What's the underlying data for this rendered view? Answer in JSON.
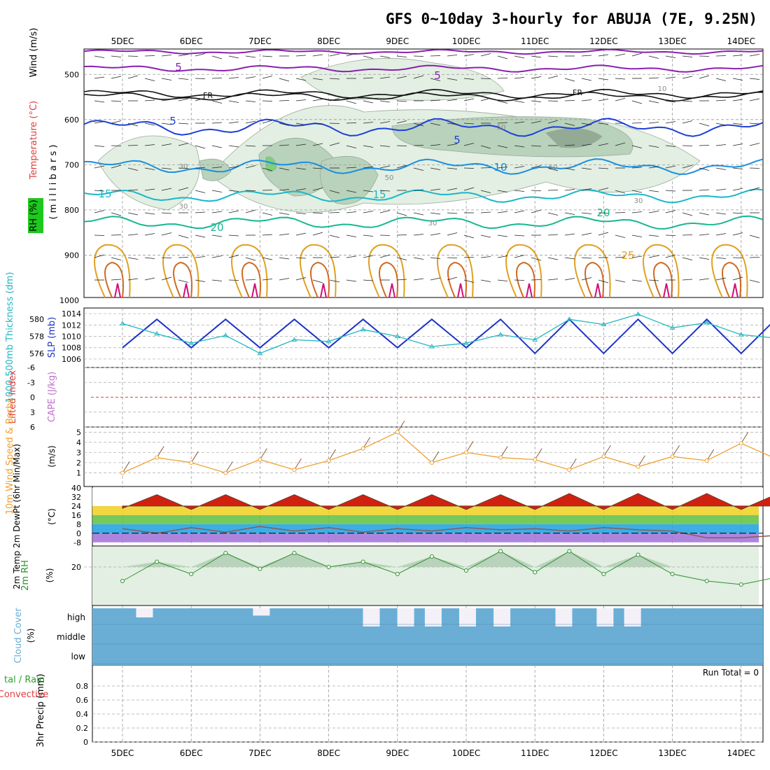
{
  "title": "GFS 0~10day 3-hourly for ABUJA (7E, 9.25N)",
  "days": [
    "5DEC",
    "6DEC",
    "7DEC",
    "8DEC",
    "9DEC",
    "10DEC",
    "11DEC",
    "12DEC",
    "13DEC",
    "14DEC"
  ],
  "colors": {
    "rh_light": "#e2efe2",
    "rh_mid": "#b9d2bb",
    "rh_dark": "#93aa95",
    "slp": "#1f34c8",
    "thickness": "#22b7c2",
    "wind10m": "#f0a030",
    "cloud": "#6aaed6",
    "cloud_gap": "#f4f0f8",
    "rh2m_line": "#2f8f2f",
    "temp_hot": "#d22010",
    "dewpt": "#8a5a5a",
    "lifted_zero": "#e06060"
  },
  "panels": {
    "upper": {
      "ylabel_wind": "Wind (m/s)",
      "ylabel_temp": "Temperature (°C)",
      "ylabel_rh": "RH (%)",
      "ylabel_mb": "( m i l l i b a r s )",
      "ticks": [
        "500",
        "600",
        "700",
        "800",
        "900",
        "1000"
      ],
      "contour_labels": [
        "5",
        "5",
        "5",
        "5",
        "10",
        "15",
        "15",
        "20",
        "20",
        "25",
        "FR",
        "FR"
      ],
      "rh_labels": [
        "50",
        "50",
        "50",
        "30",
        "30",
        "30",
        "30",
        "10"
      ]
    },
    "slp": {
      "ylabel_thickness": "1000-500mb Thickness (dm)",
      "ylabel_slp": "SLP (mb)",
      "ticks_left": [
        "580",
        "578",
        "576"
      ],
      "ticks_right": [
        "1014",
        "1012",
        "1010",
        "1008",
        "1006"
      ]
    },
    "cape": {
      "ylabel_li": "Lifted Index",
      "ylabel_cape": "CAPE (J/kg)",
      "ticks": [
        "-6",
        "-3",
        "0",
        "3",
        "6"
      ]
    },
    "wind10m": {
      "ylabel": "10m Wind Speed & Barbs",
      "unit": "(m/s)",
      "ticks": [
        "5",
        "4",
        "3",
        "2",
        "1"
      ]
    },
    "temp2m": {
      "ylabel": "2m Temp 2m DewPt (6hr Min/Max)",
      "unit": "(°C)",
      "ticks": [
        "40",
        "32",
        "24",
        "16",
        "8",
        "0",
        "-8"
      ]
    },
    "rh2m": {
      "ylabel": "2m RH",
      "unit": "(%)",
      "ticks": [
        "20"
      ]
    },
    "cloud": {
      "ylabel": "Cloud Cover",
      "unit": "(%)",
      "ticks": [
        "high",
        "middle",
        "low"
      ]
    },
    "precip": {
      "ylabel_total": "tal / Rain",
      "ylabel_conv": "Convective",
      "ylabel": "3hr Precip (mm)",
      "ticks": [
        "0.8",
        "0.6",
        "0.4",
        "0.2",
        "0"
      ],
      "run_total": "Run Total = 0"
    }
  },
  "chart_data": [
    {
      "type": "line",
      "panel": "slp",
      "x_unit": "days from 5DEC 00Z",
      "series": [
        {
          "name": "SLP (mb)",
          "x": [
            0,
            0.5,
            1,
            1.5,
            2,
            2.5,
            3,
            3.5,
            4,
            4.5,
            5,
            5.5,
            6,
            6.5,
            7,
            7.5,
            8,
            8.5,
            9,
            9.5
          ],
          "values": [
            1008,
            1013,
            1008,
            1013,
            1008,
            1013,
            1008,
            1013,
            1008,
            1013,
            1008,
            1013,
            1007,
            1013,
            1007,
            1013,
            1007,
            1013,
            1007,
            1013
          ]
        },
        {
          "name": "1000-500mb Thickness (dm)",
          "x": [
            0,
            0.5,
            1,
            1.5,
            2,
            2.5,
            3,
            3.5,
            4,
            4.5,
            5,
            5.5,
            6,
            6.5,
            7,
            7.5,
            8,
            8.5,
            9,
            9.5
          ],
          "values": [
            579.5,
            578.3,
            577.2,
            578.1,
            576.0,
            577.6,
            577.4,
            578.8,
            578.0,
            576.8,
            577.2,
            578.2,
            577.6,
            580.0,
            579.4,
            580.6,
            579.0,
            579.6,
            578.2,
            577.8
          ]
        }
      ]
    },
    {
      "type": "line",
      "panel": "cape",
      "y_range": [
        -6,
        6
      ],
      "series": [
        {
          "name": "Lifted Index",
          "x": [
            0,
            9.5
          ],
          "values": [
            0,
            0
          ]
        }
      ]
    },
    {
      "type": "line",
      "panel": "wind10m",
      "series": [
        {
          "name": "10m Wind Speed",
          "x": [
            0,
            0.5,
            1,
            1.5,
            2,
            2.5,
            3,
            3.5,
            4,
            4.5,
            5,
            5.5,
            6,
            6.5,
            7,
            7.5,
            8,
            8.5,
            9,
            9.5
          ],
          "values": [
            1.0,
            2.5,
            2.0,
            1.0,
            2.3,
            1.3,
            2.2,
            3.4,
            5.0,
            2.0,
            3.0,
            2.5,
            2.3,
            1.3,
            2.6,
            1.6,
            2.6,
            2.2,
            3.9,
            2.4
          ]
        }
      ]
    },
    {
      "type": "area",
      "panel": "temp2m",
      "y_range": [
        -8,
        40
      ],
      "series": [
        {
          "name": "2m Temp",
          "x": [
            0,
            0.5,
            1,
            1.5,
            2,
            2.5,
            3,
            3.5,
            4,
            4.5,
            5,
            5.5,
            6,
            6.5,
            7,
            7.5,
            8,
            8.5,
            9,
            9.5
          ],
          "values": [
            22,
            34,
            21,
            34,
            21,
            34,
            21,
            34,
            21,
            34,
            21,
            34,
            21,
            35,
            21,
            35,
            21,
            35,
            21,
            34
          ]
        },
        {
          "name": "2m DewPt",
          "x": [
            0,
            0.5,
            1,
            1.5,
            2,
            2.5,
            3,
            3.5,
            4,
            4.5,
            5,
            5.5,
            6,
            6.5,
            7,
            7.5,
            8,
            8.5,
            9,
            9.5
          ],
          "values": [
            4,
            0,
            5,
            1,
            6,
            2,
            5,
            1,
            4,
            2,
            5,
            3,
            4,
            2,
            5,
            3,
            2,
            -4,
            -4,
            -2
          ]
        }
      ]
    },
    {
      "type": "area",
      "panel": "rh2m",
      "series": [
        {
          "name": "2m RH",
          "x": [
            0,
            0.5,
            1,
            1.5,
            2,
            2.5,
            3,
            3.5,
            4,
            4.5,
            5,
            5.5,
            6,
            6.5,
            7,
            7.5,
            8,
            8.5,
            9,
            9.5
          ],
          "values": [
            12,
            23,
            16,
            28,
            19,
            28,
            20,
            23,
            16,
            26,
            18,
            29,
            17,
            29,
            16,
            27,
            16,
            12,
            10,
            14
          ]
        }
      ]
    },
    {
      "type": "bar",
      "panel": "cloud",
      "series": [
        {
          "name": "Cloud Cover gaps (high)",
          "x": [
            0.3,
            2.0,
            3.6,
            4.1,
            4.5,
            5.0,
            5.5,
            6.4,
            7.0,
            7.4
          ],
          "values": [
            0.5,
            0.4,
            1,
            1,
            1,
            1,
            1,
            1,
            1,
            1
          ]
        }
      ]
    },
    {
      "type": "bar",
      "panel": "precip",
      "y_range": [
        0,
        1
      ],
      "series": [
        {
          "name": "3hr Precip (mm)",
          "values": [
            0
          ]
        }
      ]
    }
  ]
}
